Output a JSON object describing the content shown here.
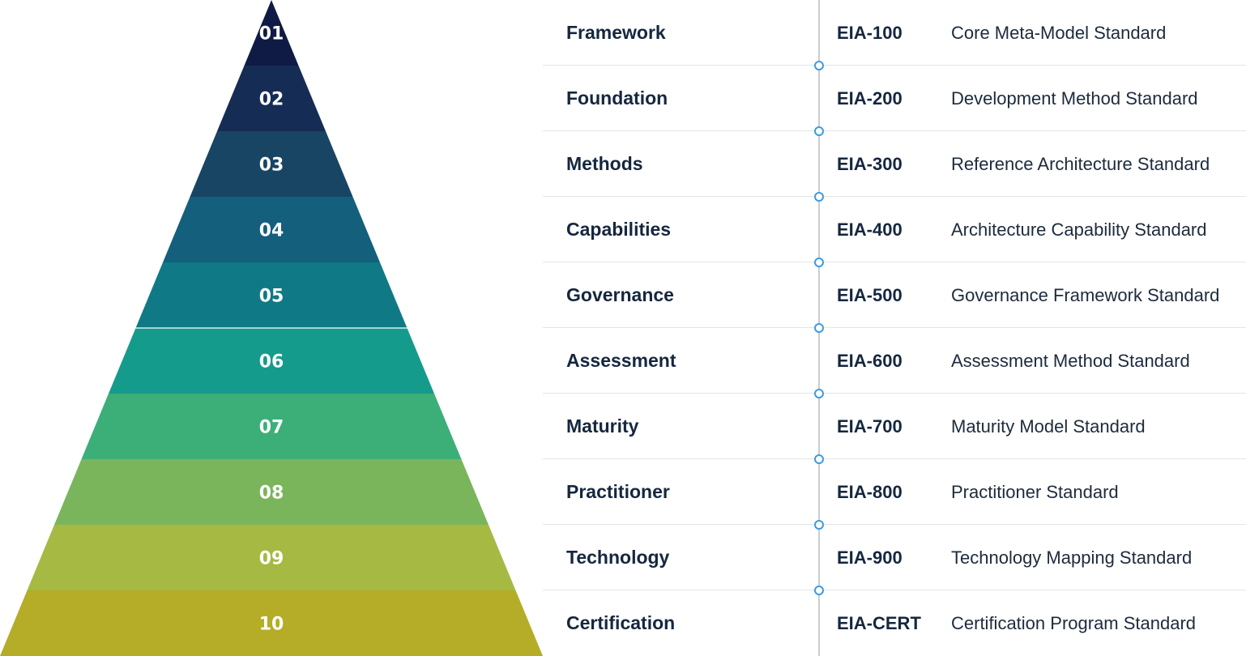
{
  "levels": [
    {
      "number": "01",
      "category": "Framework",
      "code": "EIA-100",
      "description": "Core Meta-Model Standard",
      "color": "#0f1b45"
    },
    {
      "number": "02",
      "category": "Foundation",
      "code": "EIA-200",
      "description": "Development Method Standard",
      "color": "#152c55"
    },
    {
      "number": "03",
      "category": "Methods",
      "code": "EIA-300",
      "description": "Reference Architecture Standard",
      "color": "#184563"
    },
    {
      "number": "04",
      "category": "Capabilities",
      "code": "EIA-400",
      "description": "Architecture Capability Standard",
      "color": "#135f7c"
    },
    {
      "number": "05",
      "category": "Governance",
      "code": "EIA-500",
      "description": "Governance Framework Standard",
      "color": "#107986"
    },
    {
      "number": "06",
      "category": "Assessment",
      "code": "EIA-600",
      "description": "Assessment Method Standard",
      "color": "#159b8b"
    },
    {
      "number": "07",
      "category": "Maturity",
      "code": "EIA-700",
      "description": "Maturity Model Standard",
      "color": "#3caf78"
    },
    {
      "number": "08",
      "category": "Practitioner",
      "code": "EIA-800",
      "description": "Practitioner Standard",
      "color": "#7ab55c"
    },
    {
      "number": "09",
      "category": "Technology",
      "code": "EIA-900",
      "description": "Technology Mapping Standard",
      "color": "#a6b943"
    },
    {
      "number": "10",
      "category": "Certification",
      "code": "EIA-CERT",
      "description": "Certification Program Standard",
      "color": "#b5ac28"
    }
  ],
  "colors": {
    "text_dark": "#15273f",
    "connector_line": "#c9ced4",
    "connector_dot": "#3d9be0"
  }
}
